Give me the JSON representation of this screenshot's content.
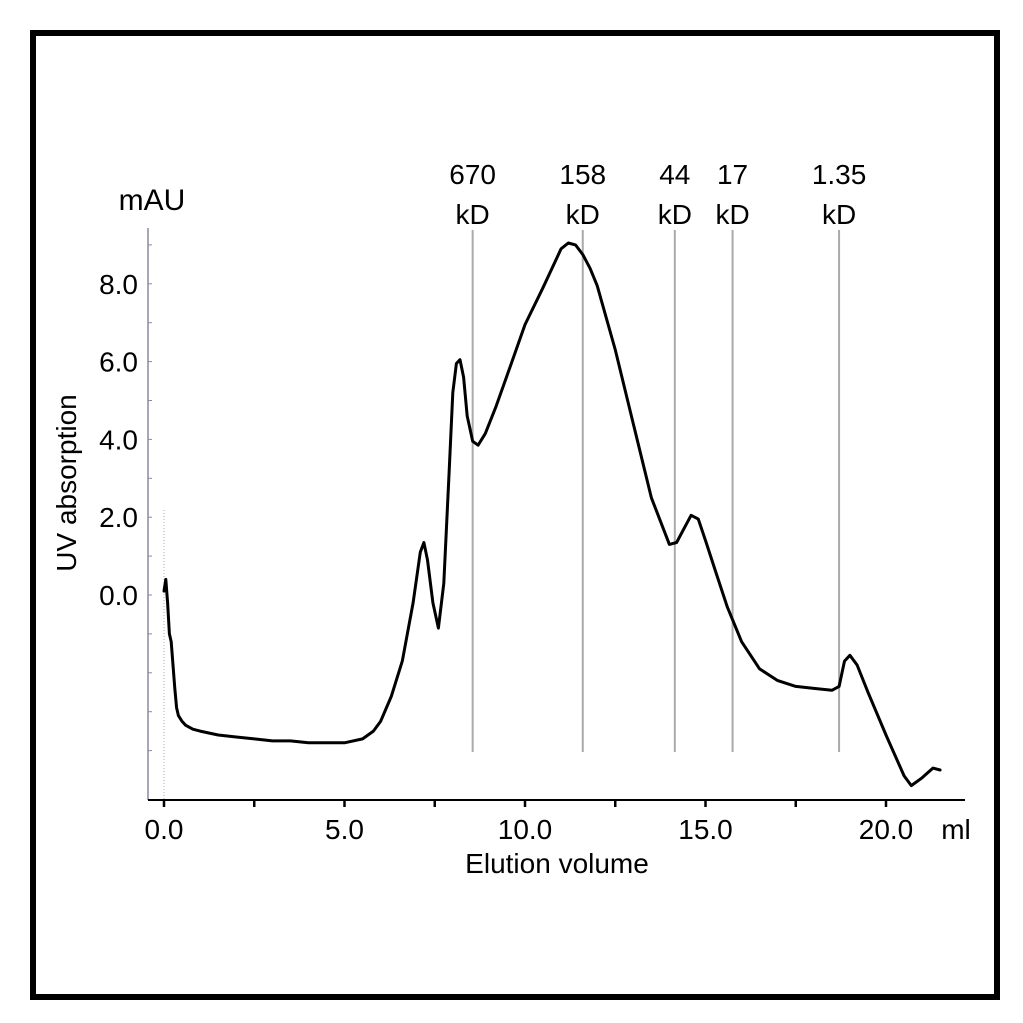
{
  "chart_data": {
    "type": "line",
    "title": "",
    "xlabel": "Elution volume",
    "x_unit": "ml",
    "ylabel": "UV absorption",
    "y_unit": "mAU",
    "xlim": [
      -0.4,
      22.2
    ],
    "ylim": [
      -5.3,
      9.8
    ],
    "x_ticks": [
      "0.0",
      "5.0",
      "10.0",
      "15.0",
      "20.0"
    ],
    "y_ticks": [
      "0.0",
      "2.0",
      "4.0",
      "6.0",
      "8.0"
    ],
    "grid": false,
    "legend": "none",
    "line_color": "#000000",
    "marker_color": "#aaaaaa",
    "markers": [
      {
        "x": 8.55,
        "value": "670",
        "unit": "kD"
      },
      {
        "x": 11.6,
        "value": "158",
        "unit": "kD"
      },
      {
        "x": 14.15,
        "value": "44",
        "unit": "kD"
      },
      {
        "x": 15.75,
        "value": "17",
        "unit": "kD"
      },
      {
        "x": 18.7,
        "value": "1.35",
        "unit": "kD"
      }
    ],
    "series": [
      {
        "x": [
          0.0,
          0.05,
          0.1,
          0.15,
          0.2,
          0.3,
          0.35,
          0.4,
          0.5,
          0.6,
          0.8,
          1.0,
          1.5,
          2.0,
          2.5,
          3.0,
          3.5,
          4.0,
          4.5,
          5.0,
          5.5,
          5.8,
          6.0,
          6.3,
          6.6,
          6.9,
          7.1,
          7.2,
          7.3,
          7.45,
          7.6,
          7.75,
          7.9,
          8.0,
          8.1,
          8.2,
          8.3,
          8.4,
          8.55,
          8.7,
          8.9,
          9.2,
          9.6,
          10.0,
          10.5,
          11.0,
          11.2,
          11.4,
          11.6,
          11.8,
          12.0,
          12.5,
          13.0,
          13.5,
          14.0,
          14.2,
          14.4,
          14.6,
          14.8,
          15.0,
          15.3,
          15.6,
          16.0,
          16.5,
          17.0,
          17.5,
          18.0,
          18.5,
          18.7,
          18.85,
          19.0,
          19.2,
          19.5,
          20.0,
          20.5,
          20.7,
          21.0,
          21.3,
          21.5
        ],
        "y": [
          0.1,
          0.4,
          -0.2,
          -1.0,
          -1.2,
          -2.4,
          -2.9,
          -3.1,
          -3.25,
          -3.35,
          -3.45,
          -3.5,
          -3.6,
          -3.65,
          -3.7,
          -3.75,
          -3.75,
          -3.8,
          -3.8,
          -3.8,
          -3.7,
          -3.5,
          -3.25,
          -2.6,
          -1.7,
          -0.2,
          1.1,
          1.35,
          0.9,
          -0.2,
          -0.85,
          0.3,
          3.2,
          5.2,
          5.95,
          6.05,
          5.6,
          4.6,
          3.95,
          3.85,
          4.15,
          4.85,
          5.9,
          6.95,
          7.9,
          8.9,
          9.05,
          9.0,
          8.75,
          8.4,
          7.95,
          6.3,
          4.4,
          2.5,
          1.3,
          1.35,
          1.7,
          2.05,
          1.95,
          1.4,
          0.55,
          -0.3,
          -1.2,
          -1.9,
          -2.2,
          -2.35,
          -2.4,
          -2.45,
          -2.35,
          -1.7,
          -1.55,
          -1.8,
          -2.5,
          -3.6,
          -4.65,
          -4.9,
          -4.7,
          -4.45,
          -4.5
        ]
      }
    ]
  }
}
